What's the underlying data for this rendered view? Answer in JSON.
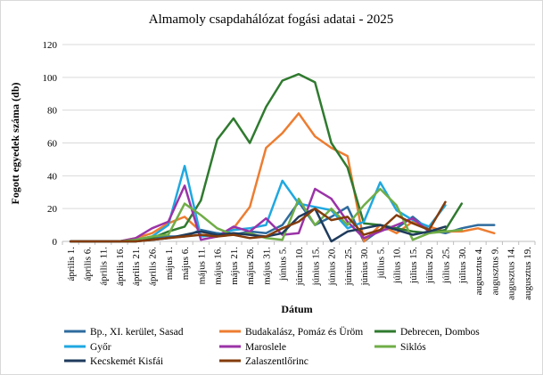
{
  "chart_data": {
    "type": "line",
    "title": "Almamoly csapdahálózat fogási adatai - 2025",
    "xlabel": "Dátum",
    "ylabel": "Fogott egyedek száma (db)",
    "ylim": [
      0,
      120
    ],
    "yticks": [
      0,
      20,
      40,
      60,
      80,
      100,
      120
    ],
    "grid": "horizontal",
    "legend_position": "bottom",
    "categories": [
      "április 1.",
      "április 6.",
      "április 11.",
      "április 16.",
      "április 21.",
      "április 26.",
      "május 1.",
      "május 6.",
      "május 11.",
      "május 16.",
      "május 21.",
      "május 26.",
      "május 31.",
      "június 5.",
      "június 10.",
      "június 15.",
      "június 20.",
      "június 25.",
      "június 30.",
      "július 5.",
      "július 10.",
      "július 15.",
      "július 20.",
      "július 25.",
      "július 30.",
      "augusztus 4.",
      "augusztus 9.",
      "augusztus 14.",
      "augusztus 19."
    ],
    "series": [
      {
        "name": "Bp., XI. kerület, Sasad",
        "color": "#2e6b9e",
        "values": [
          0,
          0,
          0,
          0,
          1,
          2,
          3,
          3,
          7,
          5,
          4,
          6,
          5,
          10,
          24,
          10,
          15,
          21,
          0,
          7,
          8,
          15,
          7,
          5,
          8,
          10,
          10,
          null,
          null
        ]
      },
      {
        "name": "Budakalász, Pomáz és Üröm",
        "color": "#ed7d31",
        "values": [
          0,
          0,
          0,
          0,
          2,
          5,
          11,
          15,
          6,
          3,
          8,
          21,
          57,
          66,
          78,
          64,
          57,
          52,
          0,
          10,
          5,
          12,
          9,
          6,
          6,
          8,
          5,
          null,
          null
        ]
      },
      {
        "name": "Debrecen, Dombos",
        "color": "#2f7a2f",
        "values": [
          0,
          0,
          0,
          0,
          0,
          2,
          6,
          9,
          25,
          62,
          75,
          60,
          82,
          98,
          102,
          97,
          60,
          45,
          11,
          10,
          8,
          6,
          5,
          7,
          23,
          null,
          null,
          null,
          null
        ]
      },
      {
        "name": "Győr",
        "color": "#1fa8e0",
        "values": [
          0,
          0,
          0,
          0,
          1,
          3,
          10,
          46,
          3,
          4,
          7,
          8,
          10,
          37,
          23,
          21,
          19,
          8,
          12,
          36,
          19,
          13,
          9,
          22,
          null,
          null,
          null,
          null,
          null
        ]
      },
      {
        "name": "Maroslele",
        "color": "#9b33a8",
        "values": [
          0,
          0,
          0,
          0,
          2,
          8,
          12,
          34,
          1,
          3,
          9,
          6,
          14,
          4,
          5,
          32,
          26,
          12,
          2,
          6,
          10,
          14,
          6,
          null,
          null,
          null,
          null,
          null,
          null
        ]
      },
      {
        "name": "Siklós",
        "color": "#70ad47",
        "values": [
          0,
          0,
          0,
          0,
          1,
          3,
          4,
          23,
          16,
          8,
          4,
          5,
          2,
          1,
          26,
          10,
          20,
          10,
          22,
          32,
          22,
          1,
          5,
          6,
          7,
          null,
          null,
          null,
          null
        ]
      },
      {
        "name": "Kecskemét Kisfái",
        "color": "#1f3b5c",
        "values": [
          0,
          0,
          0,
          0,
          0,
          1,
          2,
          4,
          6,
          4,
          5,
          4,
          3,
          5,
          15,
          20,
          0,
          6,
          8,
          10,
          7,
          4,
          6,
          9,
          null,
          null,
          null,
          null,
          null
        ]
      },
      {
        "name": "Zalaszentlőrinc",
        "color": "#843c0c",
        "values": [
          0,
          0,
          0,
          0,
          0,
          1,
          2,
          3,
          4,
          3,
          4,
          2,
          3,
          8,
          12,
          20,
          13,
          15,
          4,
          7,
          16,
          11,
          7,
          24,
          null,
          null,
          null,
          null,
          null
        ]
      }
    ]
  }
}
